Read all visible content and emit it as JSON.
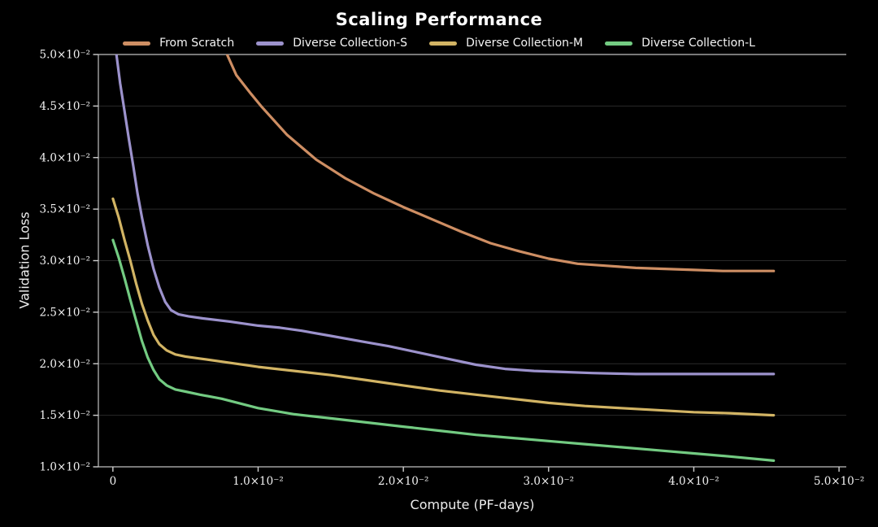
{
  "title": "Scaling Performance",
  "axes": {
    "x_label": "Compute (PF-days)",
    "y_label": "Validation Loss"
  },
  "colors": {
    "background": "#000000",
    "grid": "#2a2a2a",
    "spine": "#c0c0c0",
    "tick": "#cfcfcf",
    "tick_label": "#f2f2f2",
    "text": "#ffffff"
  },
  "chart_data": {
    "type": "line",
    "title": "Scaling Performance",
    "xlabel": "Compute (PF-days)",
    "ylabel": "Validation Loss",
    "value_units": "axis values shown in units of 10^-2",
    "xlim": [
      -0.1,
      5.05
    ],
    "ylim": [
      1.0,
      5.0
    ],
    "grid": "horizontal",
    "legend_position": "top-center",
    "x_ticks": [
      {
        "value": 0,
        "label": "0"
      },
      {
        "value": 1.0,
        "label": "1.0×10⁻²"
      },
      {
        "value": 2.0,
        "label": "2.0×10⁻²"
      },
      {
        "value": 3.0,
        "label": "3.0×10⁻²"
      },
      {
        "value": 4.0,
        "label": "4.0×10⁻²"
      },
      {
        "value": 5.0,
        "label": "5.0×10⁻²"
      }
    ],
    "y_ticks": [
      {
        "value": 1.0,
        "label": "1.0×10⁻²"
      },
      {
        "value": 1.5,
        "label": "1.5×10⁻²"
      },
      {
        "value": 2.0,
        "label": "2.0×10⁻²"
      },
      {
        "value": 2.5,
        "label": "2.5×10⁻²"
      },
      {
        "value": 3.0,
        "label": "3.0×10⁻²"
      },
      {
        "value": 3.5,
        "label": "3.5×10⁻²"
      },
      {
        "value": 4.0,
        "label": "4.0×10⁻²"
      },
      {
        "value": 4.5,
        "label": "4.5×10⁻²"
      },
      {
        "value": 5.0,
        "label": "5.0×10⁻²"
      }
    ],
    "series": [
      {
        "name": "From Scratch",
        "color": "#CE8E63",
        "points": [
          [
            0.74,
            5.35
          ],
          [
            0.78,
            5.02
          ],
          [
            0.85,
            4.8
          ],
          [
            0.95,
            4.62
          ],
          [
            1.02,
            4.5
          ],
          [
            1.2,
            4.22
          ],
          [
            1.4,
            3.98
          ],
          [
            1.6,
            3.8
          ],
          [
            1.8,
            3.65
          ],
          [
            2.0,
            3.52
          ],
          [
            2.2,
            3.4
          ],
          [
            2.4,
            3.28
          ],
          [
            2.6,
            3.17
          ],
          [
            2.8,
            3.09
          ],
          [
            3.0,
            3.02
          ],
          [
            3.2,
            2.97
          ],
          [
            3.4,
            2.95
          ],
          [
            3.6,
            2.93
          ],
          [
            3.8,
            2.92
          ],
          [
            4.0,
            2.91
          ],
          [
            4.2,
            2.9
          ],
          [
            4.55,
            2.9
          ]
        ]
      },
      {
        "name": "Diverse Collection-S",
        "color": "#9C92CC",
        "points": [
          [
            0.0,
            5.35
          ],
          [
            0.02,
            5.05
          ],
          [
            0.05,
            4.72
          ],
          [
            0.08,
            4.45
          ],
          [
            0.11,
            4.18
          ],
          [
            0.14,
            3.92
          ],
          [
            0.17,
            3.65
          ],
          [
            0.2,
            3.42
          ],
          [
            0.24,
            3.15
          ],
          [
            0.28,
            2.92
          ],
          [
            0.32,
            2.74
          ],
          [
            0.36,
            2.6
          ],
          [
            0.4,
            2.52
          ],
          [
            0.45,
            2.48
          ],
          [
            0.52,
            2.46
          ],
          [
            0.62,
            2.44
          ],
          [
            0.8,
            2.41
          ],
          [
            1.0,
            2.37
          ],
          [
            1.15,
            2.35
          ],
          [
            1.3,
            2.32
          ],
          [
            1.5,
            2.27
          ],
          [
            1.7,
            2.22
          ],
          [
            1.9,
            2.17
          ],
          [
            2.1,
            2.11
          ],
          [
            2.3,
            2.05
          ],
          [
            2.5,
            1.99
          ],
          [
            2.7,
            1.95
          ],
          [
            2.9,
            1.93
          ],
          [
            3.1,
            1.92
          ],
          [
            3.3,
            1.91
          ],
          [
            3.6,
            1.9
          ],
          [
            4.0,
            1.9
          ],
          [
            4.55,
            1.9
          ]
        ]
      },
      {
        "name": "Diverse Collection-M",
        "color": "#D2B464",
        "points": [
          [
            0.0,
            3.6
          ],
          [
            0.04,
            3.42
          ],
          [
            0.08,
            3.2
          ],
          [
            0.12,
            3.0
          ],
          [
            0.16,
            2.78
          ],
          [
            0.2,
            2.58
          ],
          [
            0.24,
            2.42
          ],
          [
            0.28,
            2.28
          ],
          [
            0.32,
            2.19
          ],
          [
            0.37,
            2.13
          ],
          [
            0.43,
            2.09
          ],
          [
            0.5,
            2.07
          ],
          [
            0.6,
            2.05
          ],
          [
            0.75,
            2.02
          ],
          [
            1.0,
            1.97
          ],
          [
            1.25,
            1.93
          ],
          [
            1.5,
            1.89
          ],
          [
            1.75,
            1.84
          ],
          [
            2.0,
            1.79
          ],
          [
            2.25,
            1.74
          ],
          [
            2.5,
            1.7
          ],
          [
            2.75,
            1.66
          ],
          [
            3.0,
            1.62
          ],
          [
            3.25,
            1.59
          ],
          [
            3.5,
            1.57
          ],
          [
            3.75,
            1.55
          ],
          [
            4.0,
            1.53
          ],
          [
            4.25,
            1.52
          ],
          [
            4.55,
            1.5
          ]
        ]
      },
      {
        "name": "Diverse Collection-L",
        "color": "#73CB82",
        "points": [
          [
            0.0,
            3.2
          ],
          [
            0.04,
            3.03
          ],
          [
            0.08,
            2.83
          ],
          [
            0.12,
            2.62
          ],
          [
            0.16,
            2.42
          ],
          [
            0.2,
            2.22
          ],
          [
            0.24,
            2.06
          ],
          [
            0.28,
            1.94
          ],
          [
            0.32,
            1.85
          ],
          [
            0.37,
            1.79
          ],
          [
            0.43,
            1.75
          ],
          [
            0.5,
            1.73
          ],
          [
            0.6,
            1.7
          ],
          [
            0.75,
            1.66
          ],
          [
            1.0,
            1.57
          ],
          [
            1.25,
            1.51
          ],
          [
            1.5,
            1.47
          ],
          [
            1.75,
            1.43
          ],
          [
            2.0,
            1.39
          ],
          [
            2.25,
            1.35
          ],
          [
            2.5,
            1.31
          ],
          [
            2.75,
            1.28
          ],
          [
            3.0,
            1.25
          ],
          [
            3.25,
            1.22
          ],
          [
            3.5,
            1.19
          ],
          [
            3.75,
            1.16
          ],
          [
            4.0,
            1.13
          ],
          [
            4.25,
            1.1
          ],
          [
            4.55,
            1.06
          ]
        ]
      }
    ]
  }
}
